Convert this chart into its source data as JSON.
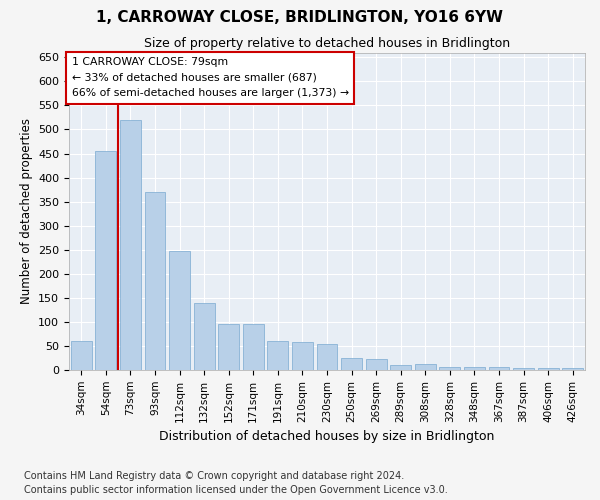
{
  "title": "1, CARROWAY CLOSE, BRIDLINGTON, YO16 6YW",
  "subtitle": "Size of property relative to detached houses in Bridlington",
  "xlabel": "Distribution of detached houses by size in Bridlington",
  "ylabel": "Number of detached properties",
  "categories": [
    "34sqm",
    "54sqm",
    "73sqm",
    "93sqm",
    "112sqm",
    "132sqm",
    "152sqm",
    "171sqm",
    "191sqm",
    "210sqm",
    "230sqm",
    "250sqm",
    "269sqm",
    "289sqm",
    "308sqm",
    "328sqm",
    "348sqm",
    "367sqm",
    "387sqm",
    "406sqm",
    "426sqm"
  ],
  "values": [
    60,
    455,
    520,
    370,
    248,
    140,
    95,
    95,
    60,
    58,
    55,
    25,
    22,
    10,
    12,
    7,
    7,
    6,
    5,
    5,
    5
  ],
  "bar_color": "#b8d0e8",
  "bar_edge_color": "#7aaad0",
  "highlight_line_color": "#cc0000",
  "annotation_text": "1 CARROWAY CLOSE: 79sqm\n← 33% of detached houses are smaller (687)\n66% of semi-detached houses are larger (1,373) →",
  "annotation_box_color": "#cc0000",
  "ylim": [
    0,
    660
  ],
  "yticks": [
    0,
    50,
    100,
    150,
    200,
    250,
    300,
    350,
    400,
    450,
    500,
    550,
    600,
    650
  ],
  "footnote": "Contains HM Land Registry data © Crown copyright and database right 2024.\nContains public sector information licensed under the Open Government Licence v3.0.",
  "fig_bg_color": "#f5f5f5",
  "ax_bg_color": "#e8eef5",
  "grid_color": "#ffffff",
  "title_fontsize": 11,
  "subtitle_fontsize": 9,
  "footnote_fontsize": 7,
  "highlight_bar_index": 2
}
